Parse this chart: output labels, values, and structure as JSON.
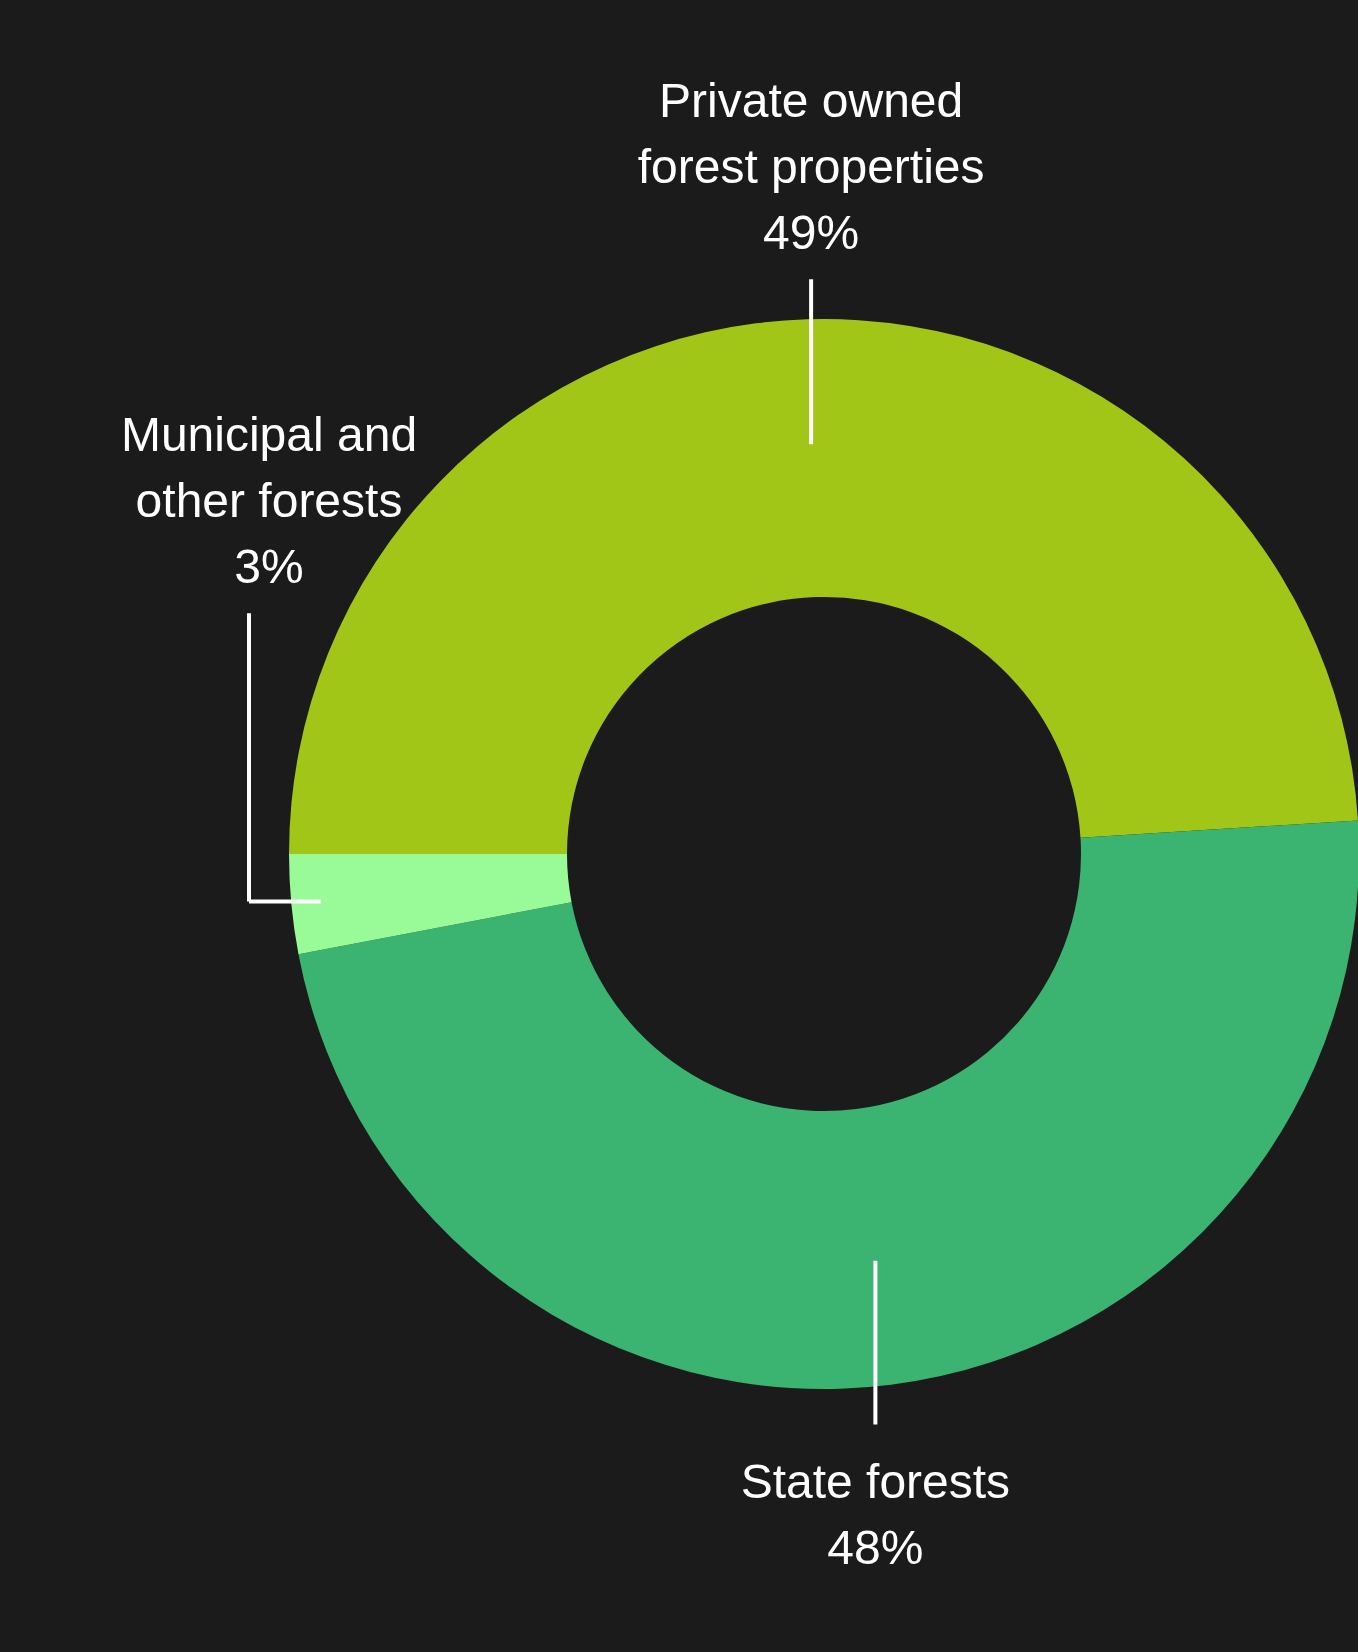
{
  "chart_data": {
    "type": "donut",
    "categories": [
      "Private owned forest properties",
      "State forests",
      "Municipal and other forests"
    ],
    "values": [
      49,
      48,
      3
    ],
    "colors": [
      "#a2c617",
      "#3bb371",
      "#98fb98"
    ],
    "value_labels": [
      "49%",
      "48%",
      "3%"
    ]
  }
}
